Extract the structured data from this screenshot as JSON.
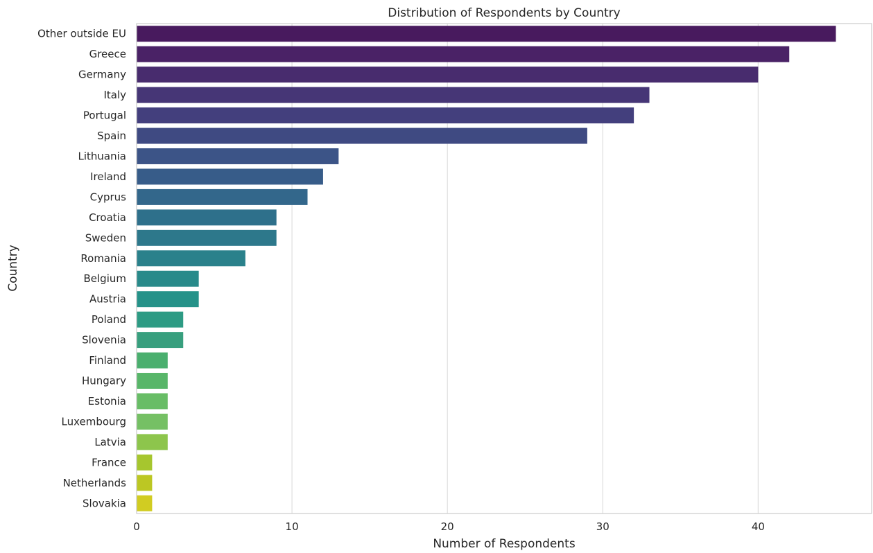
{
  "chart_data": {
    "type": "bar",
    "orientation": "horizontal",
    "title": "Distribution of Respondents by Country",
    "xlabel": "Number of Respondents",
    "ylabel": "Country",
    "categories": [
      "Other outside EU",
      "Greece",
      "Germany",
      "Italy",
      "Portugal",
      "Spain",
      "Lithuania",
      "Ireland",
      "Cyprus",
      "Croatia",
      "Sweden",
      "Romania",
      "Belgium",
      "Austria",
      "Poland",
      "Slovenia",
      "Finland",
      "Hungary",
      "Estonia",
      "Luxembourg",
      "Latvia",
      "France",
      "Netherlands",
      "Slovakia"
    ],
    "values": [
      45,
      42,
      40,
      33,
      32,
      29,
      13,
      12,
      11,
      9,
      9,
      7,
      4,
      4,
      3,
      3,
      2,
      2,
      2,
      2,
      2,
      1,
      1,
      1
    ],
    "colors": [
      "#481a5e",
      "#4a2266",
      "#482c6e",
      "#463676",
      "#433f7d",
      "#3f4a82",
      "#3c5487",
      "#375c89",
      "#33678b",
      "#2e708b",
      "#2d788b",
      "#2a818b",
      "#288a8a",
      "#259289",
      "#2d9b84",
      "#389f7e",
      "#4aaf6e",
      "#58b669",
      "#68bd66",
      "#75c064",
      "#8dc54c",
      "#a6c62e",
      "#bcc723",
      "#d1cc22"
    ],
    "xlim": [
      0,
      47.3
    ],
    "xticks": [
      "0",
      "10",
      "20",
      "30",
      "40"
    ],
    "grid": "vertical"
  }
}
